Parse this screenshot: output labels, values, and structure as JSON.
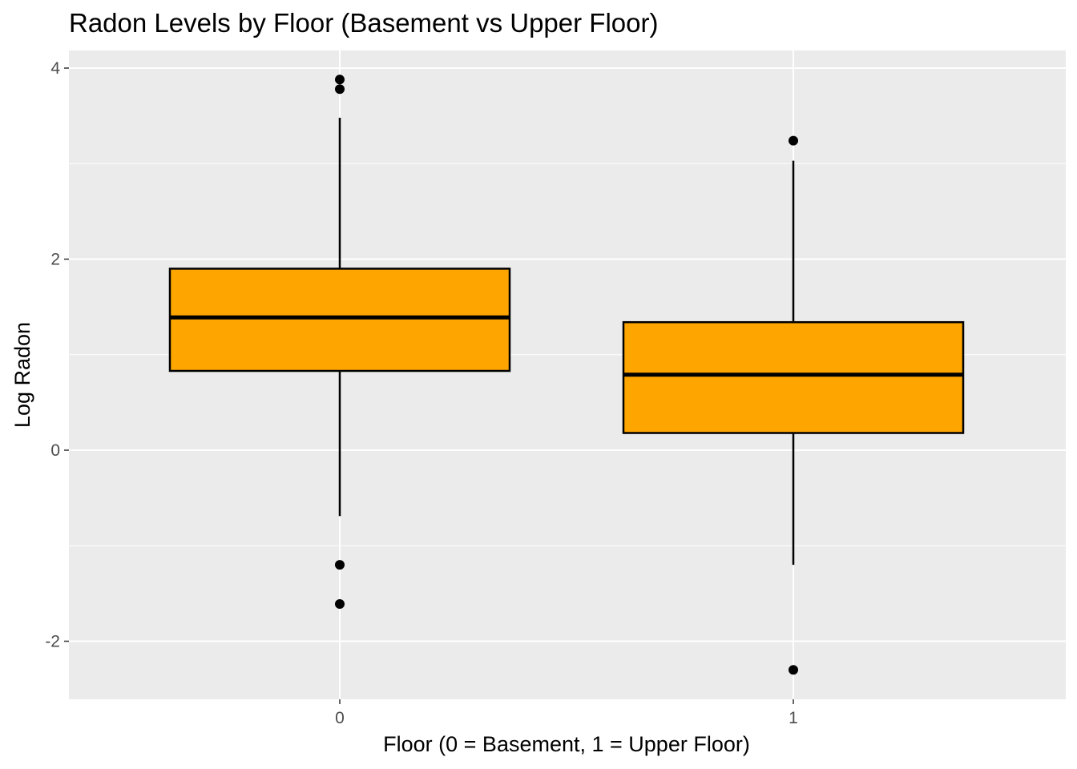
{
  "chart_data": {
    "type": "boxplot",
    "title": "Radon Levels by Floor (Basement vs Upper Floor)",
    "xlabel": "Floor (0 = Basement, 1 = Upper Floor)",
    "ylabel": "Log Radon",
    "categories": [
      "0",
      "1"
    ],
    "y_ticks": [
      -2,
      0,
      2,
      4
    ],
    "y_tick_labels": [
      "-2",
      "0",
      "2",
      "4"
    ],
    "ylim": [
      -2.6,
      4.2
    ],
    "grid": true,
    "boxes": [
      {
        "category": "0",
        "lower_whisker": -0.69,
        "q1": 0.83,
        "median": 1.39,
        "q3": 1.9,
        "upper_whisker": 3.48,
        "outliers": [
          3.88,
          3.78,
          -1.2,
          -1.61
        ]
      },
      {
        "category": "1",
        "lower_whisker": -1.2,
        "q1": 0.18,
        "median": 0.79,
        "q3": 1.34,
        "upper_whisker": 3.03,
        "outliers": [
          3.24,
          -2.3
        ]
      }
    ],
    "colors": {
      "box_fill": "#FFA500",
      "box_stroke": "#000000",
      "panel_background": "#EBEBEB",
      "grid_major": "#FFFFFF",
      "tick_label": "#4D4D4D"
    }
  }
}
